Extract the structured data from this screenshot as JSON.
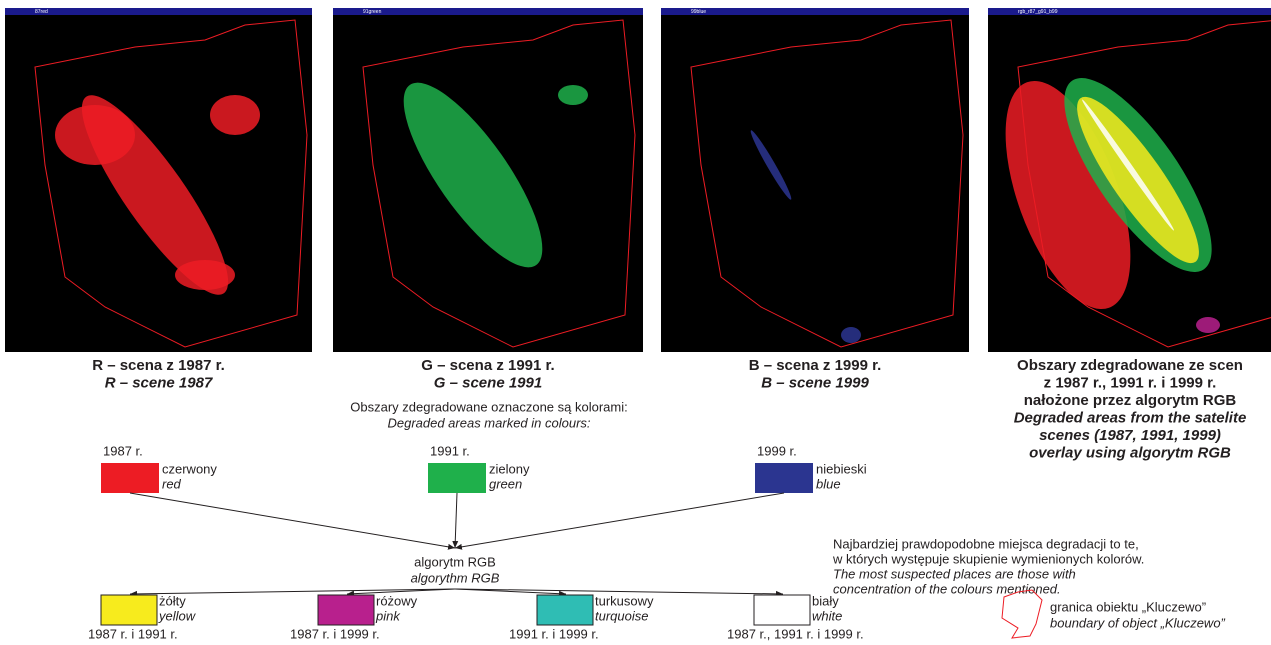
{
  "panels": [
    {
      "window_title": "87red",
      "caption": [
        "R – scena z 1987 r.",
        "R – scene 1987"
      ]
    },
    {
      "window_title": "91green",
      "caption": [
        "G – scena z 1991 r.",
        "G – scene 1991"
      ]
    },
    {
      "window_title": "99blue",
      "caption": [
        "B – scena z 1999 r.",
        "B – scene 1999"
      ]
    },
    {
      "window_title": "rgb_r87_g91_b99",
      "caption": [
        "Obszary zdegradowane ze scen",
        "z 1987 r., 1991 r. i 1999 r.",
        "nałożone przez algorytm RGB",
        "Degraded areas from the satelite",
        "scenes (1987, 1991, 1999)",
        "overlay using algorytm RGB"
      ]
    }
  ],
  "legend_intro": [
    "Obszary zdegradowane oznaczone są kolorami:",
    "Degraded areas marked in colours:"
  ],
  "inputs": [
    {
      "year": "1987 r.",
      "name": "czerwony",
      "name_en": "red",
      "color": "#ed1c24"
    },
    {
      "year": "1991 r.",
      "name": "zielony",
      "name_en": "green",
      "color": "#1fb04b"
    },
    {
      "year": "1999 r.",
      "name": "niebieski",
      "name_en": "blue",
      "color": "#2b3590"
    }
  ],
  "algorithm": [
    "algorytm RGB",
    "algorythm RGB"
  ],
  "outputs": [
    {
      "name": "żółty",
      "name_en": "yellow",
      "years": "1987 r. i 1991 r.",
      "color": "#f7eb1d"
    },
    {
      "name": "różowy",
      "name_en": "pink",
      "years": "1987 r. i 1999 r.",
      "color": "#b8208d"
    },
    {
      "name": "turkusowy",
      "name_en": "turquoise",
      "years": "1991 r. i 1999 r.",
      "color": "#2fbdb4"
    },
    {
      "name": "biały",
      "name_en": "white",
      "years": "1987 r., 1991 r. i 1999 r.",
      "color": "#ffffff"
    }
  ],
  "note": [
    "Najbardziej prawdopodobne miejsca degradacji to te,",
    "w których występuje skupienie wymienionych kolorów.",
    "The most suspected places are those with",
    "concentration of the colours mentioned."
  ],
  "boundary": [
    "granica obiektu „Kluczewo”",
    "boundary of object „Kluczewo”"
  ]
}
